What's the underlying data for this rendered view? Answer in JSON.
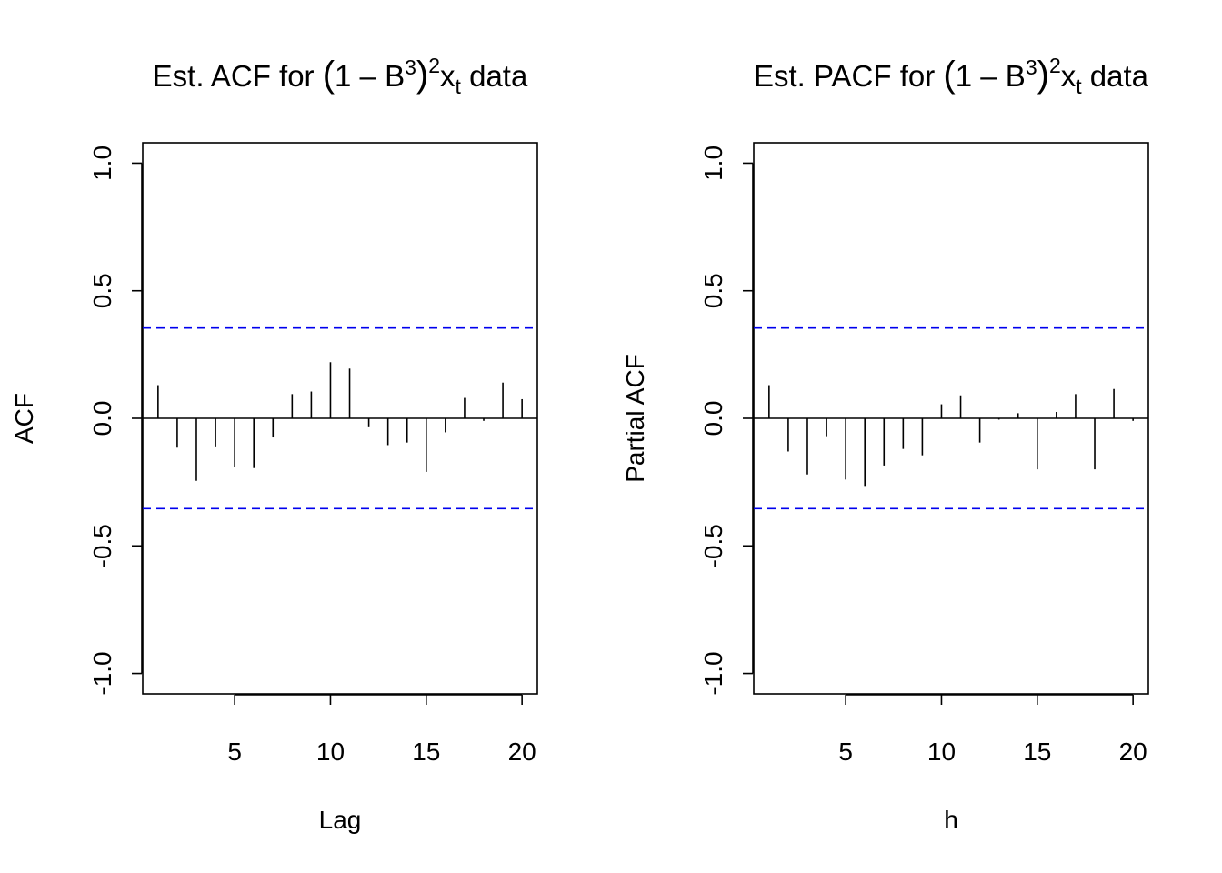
{
  "chart_data": [
    {
      "type": "bar",
      "subtype": "acf-spike",
      "title": "Est. ACF for (1 – B^3)^2x_t data",
      "title_parts": {
        "prefix": "Est. ACF for ",
        "open": "(",
        "one": "1",
        "minus": "–",
        "b": "B",
        "b_exp": "3",
        "close": ")",
        "outer_exp": "2",
        "x": "x",
        "x_sub": "t",
        "suffix": "data"
      },
      "xlabel": "Lag",
      "ylabel": "ACF",
      "xlim": [
        0.2,
        20.8
      ],
      "ylim": [
        -1.08,
        1.08
      ],
      "xticks": [
        5,
        10,
        15,
        20
      ],
      "yticks": [
        -1.0,
        -0.5,
        0.0,
        0.5,
        1.0
      ],
      "ytick_labels": [
        "-1.0",
        "-0.5",
        "0.0",
        "0.5",
        "1.0"
      ],
      "ci_bound": 0.354,
      "ci_color": "#0000ee",
      "lags": [
        1,
        2,
        3,
        4,
        5,
        6,
        7,
        8,
        9,
        10,
        11,
        12,
        13,
        14,
        15,
        16,
        17,
        18,
        19,
        20
      ],
      "values": [
        0.13,
        -0.115,
        -0.245,
        -0.11,
        -0.19,
        -0.195,
        -0.075,
        0.095,
        0.105,
        0.22,
        0.195,
        -0.035,
        -0.105,
        -0.095,
        -0.21,
        -0.055,
        0.08,
        -0.01,
        0.14,
        0.075
      ]
    },
    {
      "type": "bar",
      "subtype": "pacf-spike",
      "title": "Est. PACF for (1 – B^3)^2x_t data",
      "title_parts": {
        "prefix": "Est. PACF for ",
        "open": "(",
        "one": "1",
        "minus": "–",
        "b": "B",
        "b_exp": "3",
        "close": ")",
        "outer_exp": "2",
        "x": "x",
        "x_sub": "t",
        "suffix": "data"
      },
      "xlabel": "h",
      "ylabel": "Partial ACF",
      "xlim": [
        0.2,
        20.8
      ],
      "ylim": [
        -1.08,
        1.08
      ],
      "xticks": [
        5,
        10,
        15,
        20
      ],
      "yticks": [
        -1.0,
        -0.5,
        0.0,
        0.5,
        1.0
      ],
      "ytick_labels": [
        "-1.0",
        "-0.5",
        "0.0",
        "0.5",
        "1.0"
      ],
      "ci_bound": 0.354,
      "ci_color": "#0000ee",
      "lags": [
        1,
        2,
        3,
        4,
        5,
        6,
        7,
        8,
        9,
        10,
        11,
        12,
        13,
        14,
        15,
        16,
        17,
        18,
        19,
        20
      ],
      "values": [
        0.13,
        -0.13,
        -0.22,
        -0.07,
        -0.24,
        -0.265,
        -0.185,
        -0.12,
        -0.145,
        0.055,
        0.09,
        -0.095,
        -0.005,
        0.02,
        -0.2,
        0.025,
        0.095,
        -0.2,
        0.115,
        -0.01
      ]
    }
  ]
}
